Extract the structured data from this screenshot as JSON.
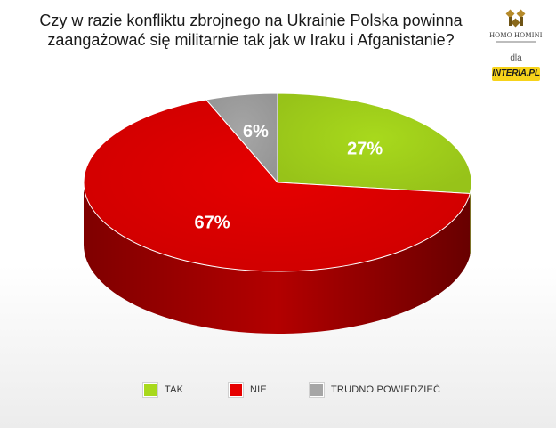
{
  "title": {
    "line1": "Czy w razie konfliktu zbrojnego na Ukrainie Polska powinna",
    "line2": "zaangażować się militarnie tak jak w Iraku i Afganistanie?"
  },
  "branding": {
    "logo_icon": "homo-homini-logo-icon",
    "logo_text": "HOMO HOMINI",
    "dla": "dla",
    "partner": "INTERIA.PL"
  },
  "chart_data": {
    "type": "pie",
    "title": "Czy w razie konfliktu zbrojnego na Ukrainie Polska powinna zaangażować się militarnie tak jak w Iraku i Afganistanie?",
    "categories": [
      "TAK",
      "NIE",
      "TRUDNO POWIEDZIEĆ"
    ],
    "values": [
      27,
      67,
      6
    ],
    "unit": "%",
    "data_labels": [
      "27%",
      "67%",
      "6%"
    ],
    "colors": [
      "#a8d91c",
      "#e60000",
      "#a6a6a6"
    ],
    "style": "3d",
    "legend_position": "bottom"
  }
}
